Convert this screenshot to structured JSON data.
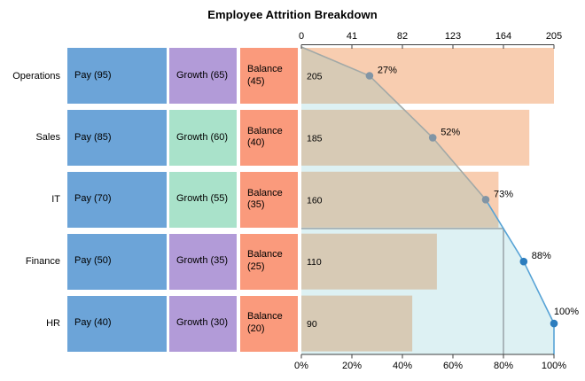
{
  "title": "Employee Attrition Breakdown",
  "palette": {
    "pay": "#6CA4D8",
    "growth_purple": "#B29BD8",
    "growth_mint": "#A9E2CA",
    "balance": "#FA9A7C",
    "bar_peach": "#F8CDB0",
    "area_overlay": "rgba(100,190,200,0.22)",
    "line_gray": "#A2A9A7",
    "dot_gray": "#8295A5",
    "line_blue": "#57A3D6",
    "dot_blue": "#2C7DBE",
    "axis": "#3f3f3f",
    "threshold": "rgba(90,90,95,0.55)"
  },
  "rows": [
    {
      "label": "Operations",
      "total": 205,
      "total_label": "205",
      "cum_pct": 27,
      "cum_label": "27%",
      "cells": [
        {
          "text": "Pay (95)",
          "value": 95,
          "color": "pay"
        },
        {
          "text": "Growth (65)",
          "value": 65,
          "color": "growth_purple"
        },
        {
          "text": "Balance (45)",
          "value": 45,
          "color": "balance"
        }
      ]
    },
    {
      "label": "Sales",
      "total": 185,
      "total_label": "185",
      "cum_pct": 52,
      "cum_label": "52%",
      "cells": [
        {
          "text": "Pay (85)",
          "value": 85,
          "color": "pay"
        },
        {
          "text": "Growth (60)",
          "value": 60,
          "color": "growth_mint"
        },
        {
          "text": "Balance (40)",
          "value": 40,
          "color": "balance"
        }
      ]
    },
    {
      "label": "IT",
      "total": 160,
      "total_label": "160",
      "cum_pct": 73,
      "cum_label": "73%",
      "cells": [
        {
          "text": "Pay (70)",
          "value": 70,
          "color": "pay"
        },
        {
          "text": "Growth (55)",
          "value": 55,
          "color": "growth_mint"
        },
        {
          "text": "Balance (35)",
          "value": 35,
          "color": "balance"
        }
      ]
    },
    {
      "label": "Finance",
      "total": 110,
      "total_label": "110",
      "cum_pct": 88,
      "cum_label": "88%",
      "cells": [
        {
          "text": "Pay (50)",
          "value": 50,
          "color": "pay"
        },
        {
          "text": "Growth (35)",
          "value": 35,
          "color": "growth_purple"
        },
        {
          "text": "Balance (25)",
          "value": 25,
          "color": "balance"
        }
      ]
    },
    {
      "label": "HR",
      "total": 90,
      "total_label": "90",
      "cum_pct": 100,
      "cum_label": "100%",
      "cells": [
        {
          "text": "Pay (40)",
          "value": 40,
          "color": "pay"
        },
        {
          "text": "Growth (30)",
          "value": 30,
          "color": "growth_purple"
        },
        {
          "text": "Balance (20)",
          "value": 20,
          "color": "balance"
        }
      ]
    }
  ],
  "chart_data": {
    "type": "bar",
    "subtype": "horizontal-pareto-with-category-table",
    "title": "Employee Attrition Breakdown",
    "categories": [
      "Operations",
      "Sales",
      "IT",
      "Finance",
      "HR"
    ],
    "series": [
      {
        "name": "Pay",
        "values": [
          95,
          85,
          70,
          50,
          40
        ]
      },
      {
        "name": "Growth",
        "values": [
          65,
          60,
          55,
          35,
          30
        ]
      },
      {
        "name": "Balance",
        "values": [
          45,
          40,
          35,
          25,
          20
        ]
      }
    ],
    "totals": [
      205,
      185,
      160,
      110,
      90
    ],
    "cumulative_pct": [
      27,
      52,
      73,
      88,
      100
    ],
    "top_axis": {
      "min": 0,
      "max": 205,
      "ticks": [
        0,
        41,
        82,
        123,
        164,
        205
      ],
      "tick_labels": [
        "0",
        "41",
        "82",
        "123",
        "164",
        "205"
      ]
    },
    "bottom_axis": {
      "min": 0,
      "max": 100,
      "ticks": [
        0,
        20,
        40,
        60,
        80,
        100
      ],
      "tick_labels": [
        "0%",
        "20%",
        "40%",
        "60%",
        "80%",
        "100%"
      ]
    },
    "threshold_pct": 80,
    "grid": false,
    "legend": "none"
  }
}
